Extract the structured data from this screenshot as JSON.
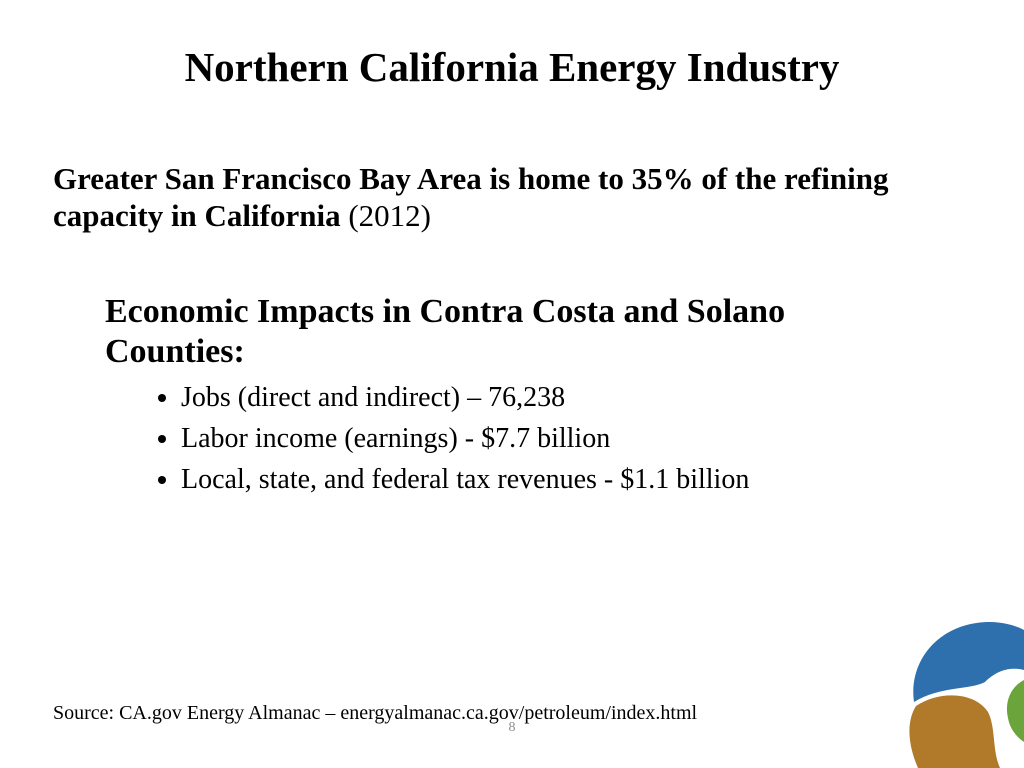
{
  "title": "Northern California Energy Industry",
  "headline": {
    "bold": "Greater San Francisco Bay Area is home to 35% of the refining capacity in California",
    "year": "(2012)"
  },
  "section": {
    "heading": "Economic Impacts in Contra Costa and Solano Counties:",
    "bullets": [
      "Jobs (direct and indirect) – 76,238",
      "Labor income (earnings) - $7.7 billion",
      "Local, state, and federal tax revenues - $1.1 billion"
    ]
  },
  "source": "Source: CA.gov Energy Almanac – energyalmanac.ca.gov/petroleum/index.html",
  "page_number": "8"
}
